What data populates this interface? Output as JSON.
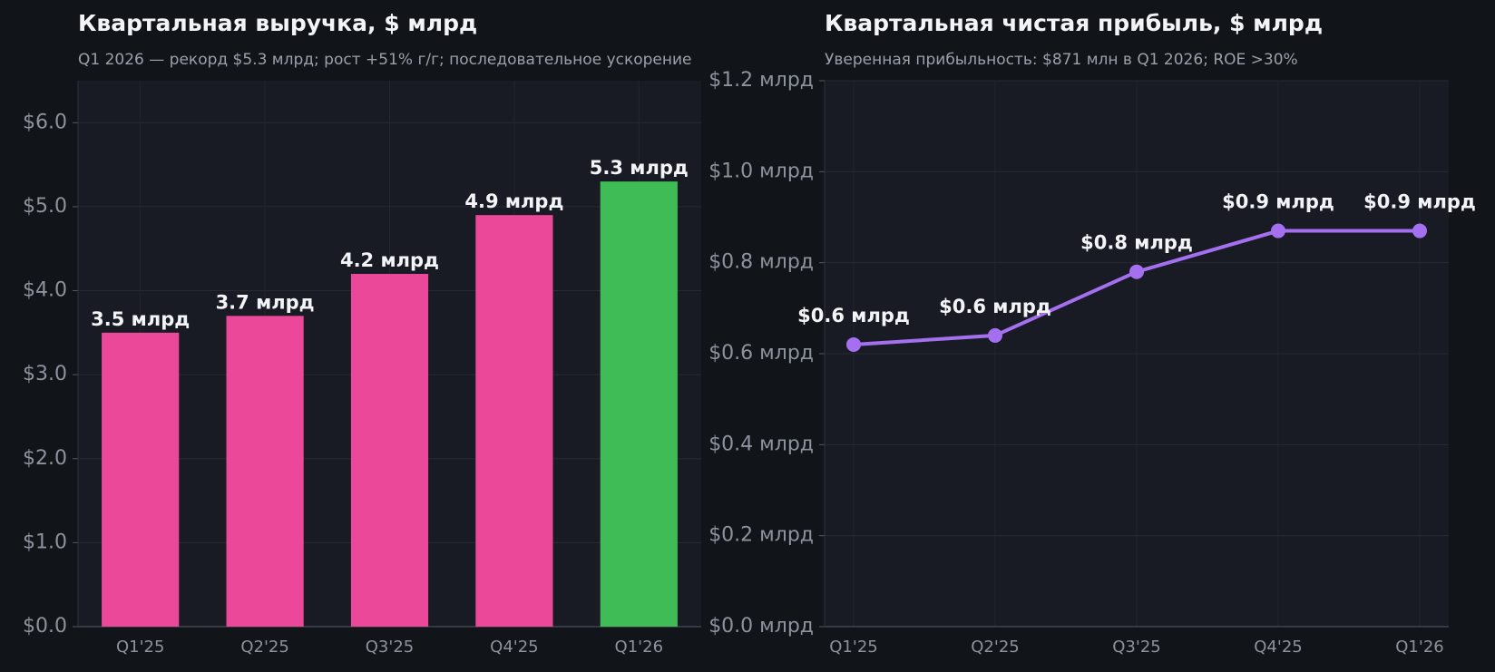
{
  "chart_data": [
    {
      "type": "bar",
      "title": "Квартальная выручка, $ млрд",
      "subtitle": "Q1 2026 — рекорд $5.3 млрд; рост +51% г/г; последовательное ускорение",
      "categories": [
        "Q1'25",
        "Q2'25",
        "Q3'25",
        "Q4'25",
        "Q1'26"
      ],
      "values": [
        3.5,
        3.7,
        4.2,
        4.9,
        5.3
      ],
      "value_labels": [
        "3.5 млрд",
        "3.7 млрд",
        "4.2 млрд",
        "4.9 млрд",
        "5.3 млрд"
      ],
      "colors": [
        "#ec4899",
        "#ec4899",
        "#ec4899",
        "#ec4899",
        "#3fbc55"
      ],
      "ylim": [
        0,
        6.5
      ],
      "yticks": [
        {
          "value": 0,
          "label": "$0.0"
        },
        {
          "value": 1,
          "label": "$1.0"
        },
        {
          "value": 2,
          "label": "$2.0"
        },
        {
          "value": 3,
          "label": "$3.0"
        },
        {
          "value": 4,
          "label": "$4.0"
        },
        {
          "value": 5,
          "label": "$5.0"
        },
        {
          "value": 6,
          "label": "$6.0"
        }
      ],
      "grid": true
    },
    {
      "type": "line",
      "title": "Квартальная чистая прибыль, $ млрд",
      "subtitle": "Уверенная прибыльность: $871 млн в Q1 2026; ROE >30%",
      "categories": [
        "Q1'25",
        "Q2'25",
        "Q3'25",
        "Q4'25",
        "Q1'26"
      ],
      "values": [
        0.62,
        0.64,
        0.78,
        0.87,
        0.87
      ],
      "value_labels": [
        "$0.6 млрд",
        "$0.6 млрд",
        "$0.8 млрд",
        "$0.9 млрд",
        "$0.9 млрд"
      ],
      "color": "#a470f0",
      "ylim": [
        0,
        1.2
      ],
      "yticks": [
        {
          "value": 0,
          "label": "$0.0 млрд"
        },
        {
          "value": 0.2,
          "label": "$0.2 млрд"
        },
        {
          "value": 0.4,
          "label": "$0.4 млрд"
        },
        {
          "value": 0.6,
          "label": "$0.6 млрд"
        },
        {
          "value": 0.8,
          "label": "$0.8 млрд"
        },
        {
          "value": 1,
          "label": "$1.0 млрд"
        },
        {
          "value": 1.2,
          "label": "$1.2 млрд"
        }
      ],
      "grid": true
    }
  ]
}
